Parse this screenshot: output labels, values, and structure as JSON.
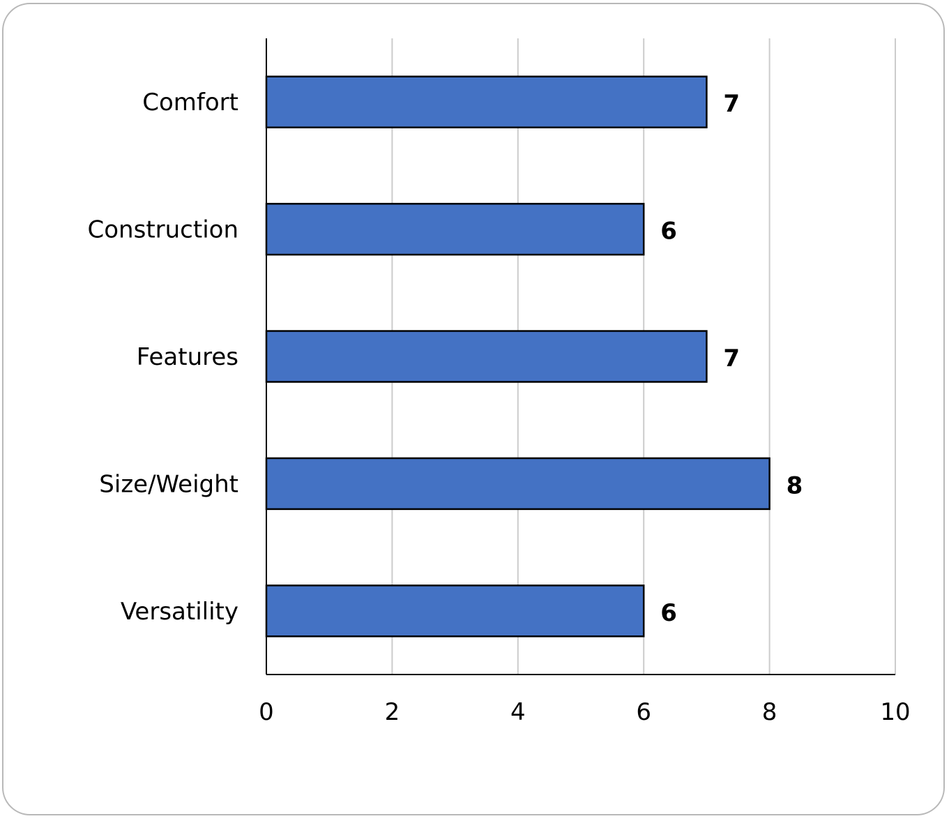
{
  "chart_data": {
    "type": "bar",
    "orientation": "horizontal",
    "categories": [
      "Comfort",
      "Construction",
      "Features",
      "Size/Weight",
      "Versatility"
    ],
    "values": [
      7,
      6,
      7,
      8,
      6
    ],
    "data_labels": [
      "7",
      "6",
      "7",
      "8",
      "6"
    ],
    "title": "",
    "xlabel": "",
    "ylabel": "",
    "xlim": [
      0,
      10
    ],
    "x_ticks": [
      0,
      2,
      4,
      6,
      8,
      10
    ],
    "x_tick_labels": [
      "0",
      "2",
      "4",
      "6",
      "8",
      "10"
    ],
    "grid": "vertical",
    "legend": "none",
    "colors": {
      "bar_fill": "#4472c4",
      "bar_stroke": "#000000",
      "gridline": "#cccccc",
      "axis": "#000000"
    }
  }
}
